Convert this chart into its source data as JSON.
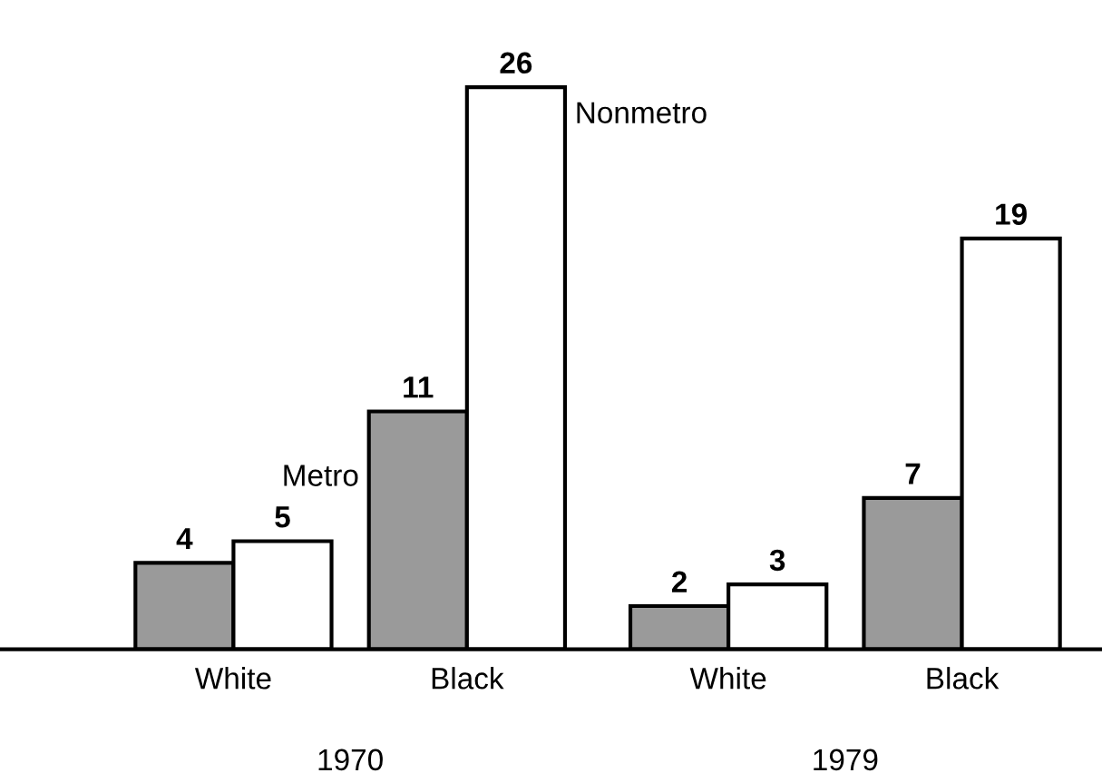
{
  "chart_data": {
    "type": "bar",
    "categories": [
      "White",
      "Black",
      "White",
      "Black"
    ],
    "series": [
      {
        "name": "Metro",
        "color": "#9a9a9a",
        "values": [
          4,
          11,
          2,
          7
        ]
      },
      {
        "name": "Nonmetro",
        "color": "#ffffff",
        "values": [
          5,
          26,
          3,
          19
        ]
      }
    ],
    "annotations": [
      "1970",
      "1979"
    ],
    "data_labels": true,
    "legend": false,
    "grid": false,
    "tick_labels": "x"
  }
}
